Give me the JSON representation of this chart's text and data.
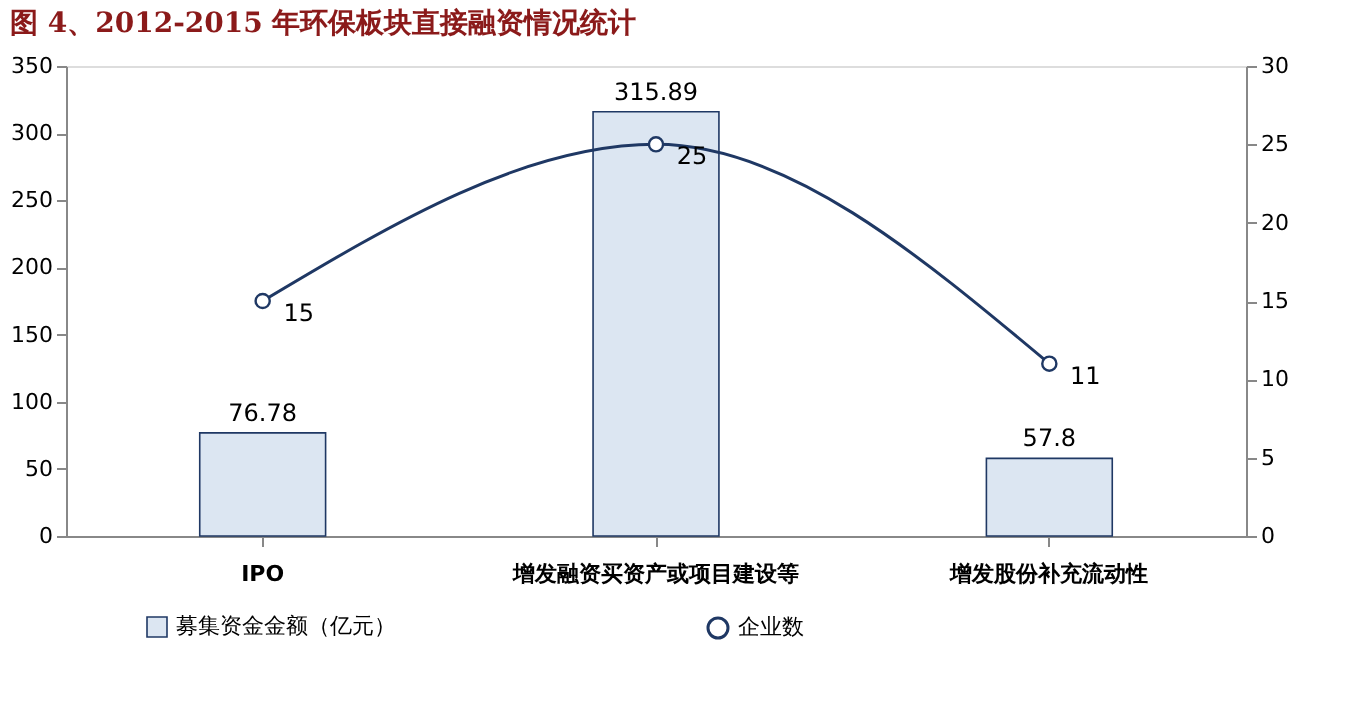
{
  "chart_data": {
    "type": "bar",
    "title": "图 4、2012-2015 年环保板块直接融资情况统计",
    "categories": [
      "IPO",
      "增发融资买资产或项目建设等",
      "增发股份补充流动性"
    ],
    "series": [
      {
        "name": "募集资金金额（亿元）",
        "type": "bar",
        "color": "#dce6f2",
        "values": [
          76.78,
          315.89,
          57.8
        ]
      },
      {
        "name": "企业数",
        "type": "line",
        "axis": "y2",
        "color": "#1f3864",
        "marker": "circle",
        "values": [
          15,
          25,
          11
        ]
      }
    ],
    "ylim": [
      0,
      350
    ],
    "yticks": [
      0,
      50,
      100,
      150,
      200,
      250,
      300,
      350
    ],
    "y2lim": [
      0,
      30
    ],
    "y2ticks": [
      0,
      5,
      10,
      15,
      20,
      25,
      30
    ],
    "data_labels": true,
    "legend": "bottom",
    "grid": false
  }
}
